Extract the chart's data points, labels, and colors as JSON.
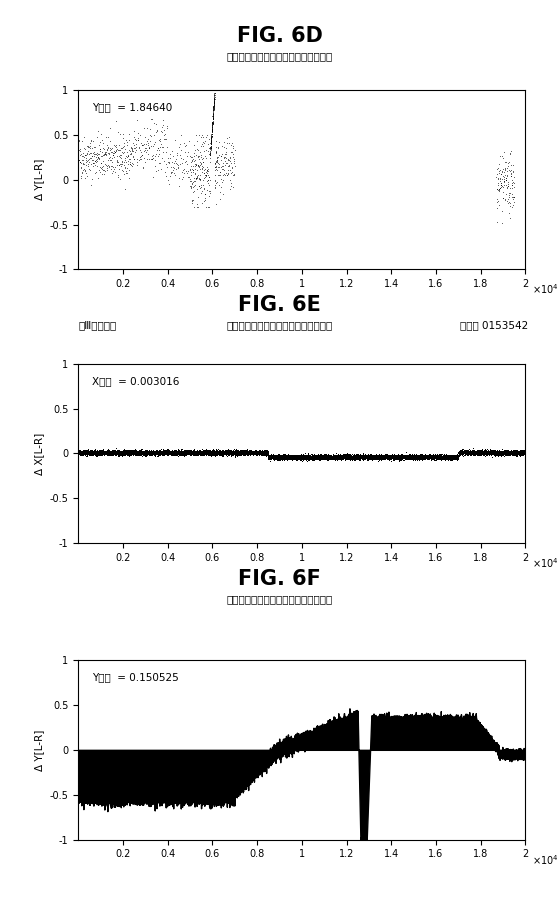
{
  "fig_title_D": "FIG. 6D",
  "fig_title_E": "FIG. 6E",
  "fig_title_F": "FIG. 6F",
  "subtitle": "異なる対象の中での注視共同性の比較",
  "ylabel_D": "Δ Y[L-R]",
  "ylabel_E": "Δ X[L-R]",
  "ylabel_F": "Δ Y[L-R]",
  "ylim": [
    -1,
    1
  ],
  "xlim": [
    0,
    20000
  ],
  "xticks": [
    2000,
    4000,
    6000,
    8000,
    10000,
    12000,
    14000,
    16000,
    18000,
    20000
  ],
  "xticklabels": [
    "0.2",
    "0.4",
    "0.6",
    "0.8",
    "1",
    "1.2",
    "1.4",
    "1.6",
    "1.8",
    "2"
  ],
  "yticks": [
    -1,
    -0.5,
    0,
    0.5,
    1
  ],
  "annotation_D": "Y分散  = 1.84640",
  "annotation_E": "X分散  = 0.003016",
  "annotation_F": "Y分散  = 0.150525",
  "label_E_left": "第Ⅲ神経麻痺",
  "label_E_right": "全分散 0153542",
  "bg_color": "#ffffff",
  "line_color": "#000000",
  "fig_title_fontsize": 15,
  "subtitle_fontsize": 7.5,
  "annotation_fontsize": 7.5,
  "axis_fontsize": 7,
  "ylabel_fontsize": 7.5,
  "label_E_fontsize": 7.5
}
